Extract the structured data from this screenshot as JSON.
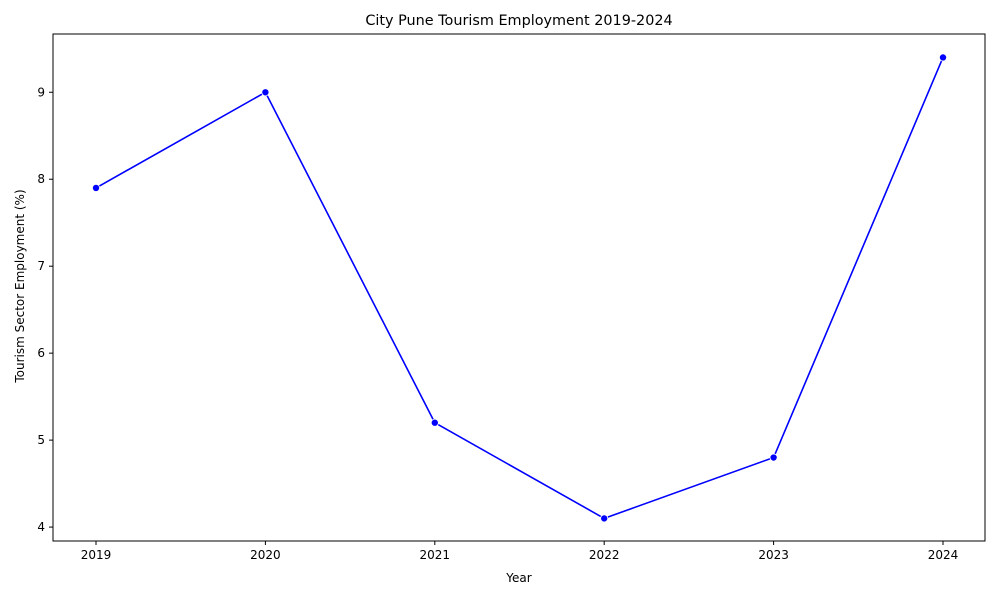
{
  "chart_data": {
    "type": "line",
    "title": "City Pune Tourism Employment 2019-2024",
    "xlabel": "Year",
    "ylabel": "Tourism Sector Employment (%)",
    "x": [
      "2019",
      "2020",
      "2021",
      "2022",
      "2023",
      "2024"
    ],
    "series": [
      {
        "values": [
          7.9,
          9.0,
          5.2,
          4.1,
          4.8,
          9.4
        ],
        "color": "#0000ff",
        "marker": "circle"
      }
    ],
    "yticks": [
      4,
      5,
      6,
      7,
      8,
      9
    ],
    "ylim": [
      3.84,
      9.67
    ],
    "grid": false,
    "legend": "none"
  }
}
